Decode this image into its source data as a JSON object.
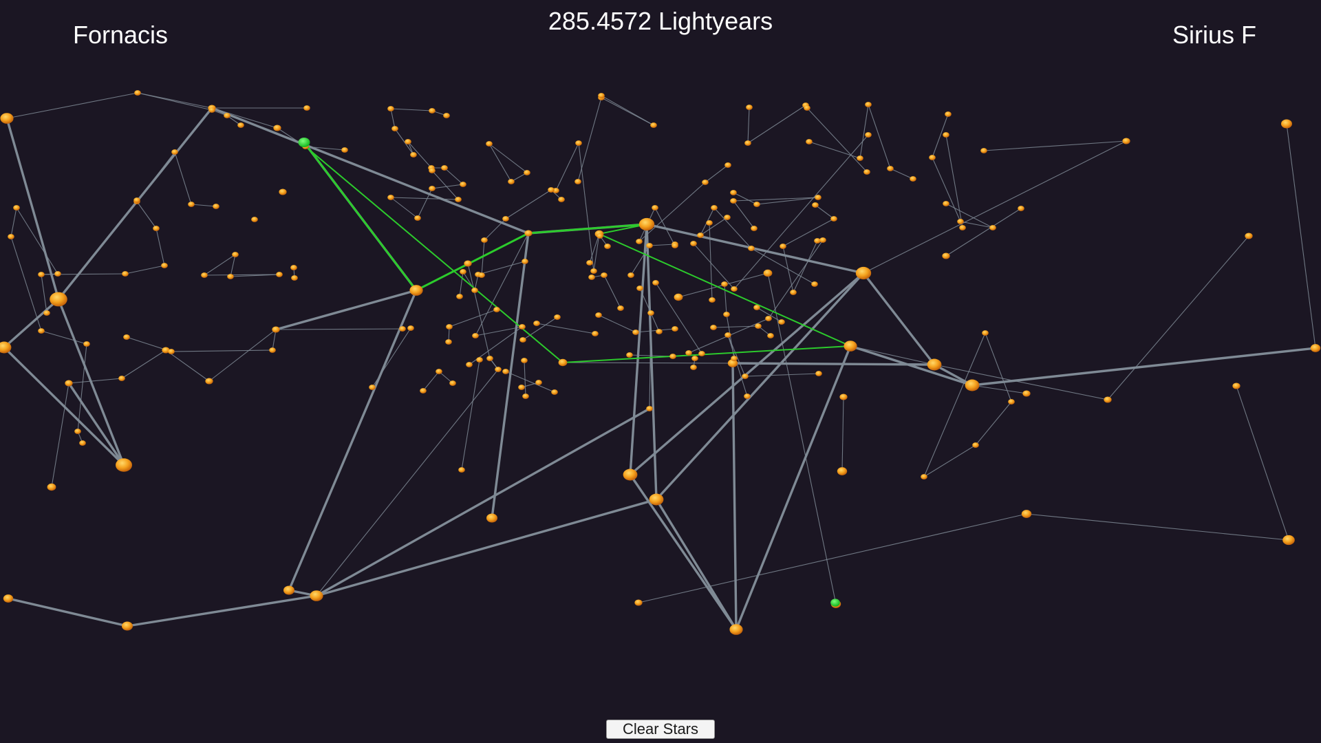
{
  "hud": {
    "start_star": "Fornacis",
    "distance": "285.4572 Lightyears",
    "end_star": "Sirius F"
  },
  "controls": {
    "clear_label": "Clear Stars"
  },
  "colors": {
    "background": "#1b1623",
    "star": "#f39a1a",
    "star_highlight": "#ffcf5a",
    "selected_star": "#22d12e",
    "lane": "#7f8a95",
    "route": "#2ccb2c"
  },
  "icons": {
    "star": "orange-sphere",
    "selected_star": "green-sphere"
  }
}
